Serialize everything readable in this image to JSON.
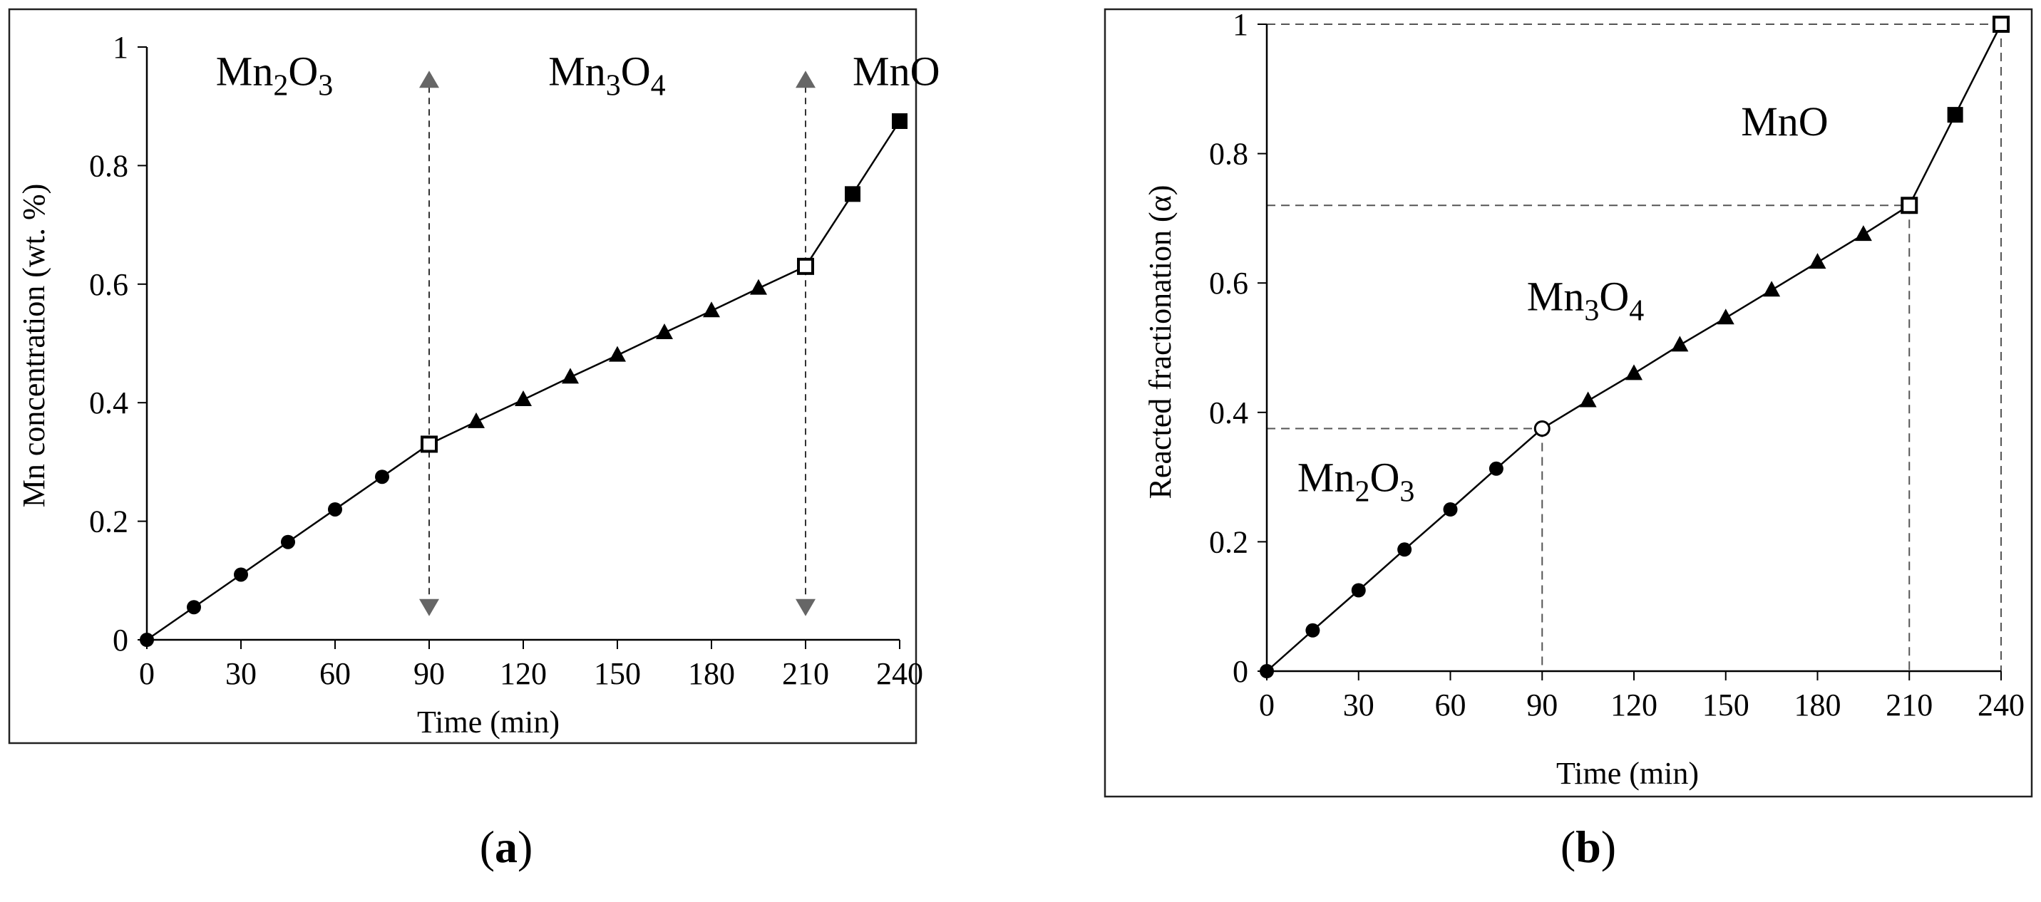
{
  "chart_data": [
    {
      "type": "line",
      "panel": "a",
      "panel_label": {
        "open": "(",
        "letter": "a",
        "close": ")"
      },
      "xlabel": "Time (min)",
      "ylabel": "Mn concentration (wt. %)",
      "xlim": [
        0,
        240
      ],
      "ylim": [
        0,
        1
      ],
      "xticks": [
        0,
        30,
        60,
        90,
        120,
        150,
        180,
        210,
        240
      ],
      "xtick_labels": [
        "0",
        "30",
        "60",
        "90",
        "120",
        "150",
        "180",
        "210",
        "240"
      ],
      "yticks": [
        0,
        0.2,
        0.4,
        0.6,
        0.8,
        1
      ],
      "ytick_labels": [
        "0",
        "0.2",
        "0.4",
        "0.6",
        "0.8",
        "1"
      ],
      "grid": false,
      "series": [
        {
          "name": "Mn concentration",
          "x": [
            0,
            15,
            30,
            45,
            60,
            75,
            90,
            105,
            120,
            135,
            150,
            165,
            180,
            195,
            210,
            225,
            240
          ],
          "y": [
            0,
            0.055,
            0.11,
            0.165,
            0.22,
            0.275,
            0.33,
            0.368,
            0.405,
            0.443,
            0.48,
            0.518,
            0.555,
            0.593,
            0.63,
            0.752,
            0.875
          ],
          "markers": [
            "circle",
            "circle",
            "circle",
            "circle",
            "circle",
            "circle",
            "open-square",
            "triangle",
            "triangle",
            "triangle",
            "triangle",
            "triangle",
            "triangle",
            "triangle",
            "open-square",
            "square",
            "square"
          ]
        }
      ],
      "annotations": [
        {
          "kind": "double-arrow",
          "x": 90,
          "y_from": 0.04,
          "y_to": 0.96
        },
        {
          "kind": "double-arrow",
          "x": 210,
          "y_from": 0.04,
          "y_to": 0.96
        },
        {
          "kind": "phase",
          "base": "Mn",
          "sub1": "2",
          "mid": "O",
          "sub2": "3",
          "x": 22,
          "y": 0.96
        },
        {
          "kind": "phase",
          "base": "Mn",
          "sub1": "3",
          "mid": "O",
          "sub2": "4",
          "x": 128,
          "y": 0.96
        },
        {
          "kind": "phase",
          "base": "MnO",
          "sub1": "",
          "mid": "",
          "sub2": "",
          "x": 225,
          "y": 0.96
        }
      ]
    },
    {
      "type": "line",
      "panel": "b",
      "panel_label": {
        "open": "(",
        "letter": "b",
        "close": ")"
      },
      "xlabel": "Time (min)",
      "ylabel": "Reacted fractionation (α)",
      "xlim": [
        0,
        240
      ],
      "ylim": [
        0,
        1
      ],
      "xticks": [
        0,
        30,
        60,
        90,
        120,
        150,
        180,
        210,
        240
      ],
      "xtick_labels": [
        "0",
        "30",
        "60",
        "90",
        "120",
        "150",
        "180",
        "210",
        "240"
      ],
      "yticks": [
        0,
        0.2,
        0.4,
        0.6,
        0.8,
        1
      ],
      "ytick_labels": [
        "0",
        "0.2",
        "0.4",
        "0.6",
        "0.8",
        "1"
      ],
      "grid": false,
      "series": [
        {
          "name": "Reacted fractionation",
          "x": [
            0,
            15,
            30,
            45,
            60,
            75,
            90,
            105,
            120,
            135,
            150,
            165,
            180,
            195,
            210,
            225,
            240
          ],
          "y": [
            0,
            0.063,
            0.125,
            0.188,
            0.25,
            0.313,
            0.375,
            0.418,
            0.46,
            0.504,
            0.546,
            0.589,
            0.632,
            0.675,
            0.72,
            0.86,
            1.0
          ],
          "markers": [
            "circle",
            "circle",
            "circle",
            "circle",
            "circle",
            "circle",
            "open-circle",
            "triangle",
            "triangle",
            "triangle",
            "triangle",
            "triangle",
            "triangle",
            "triangle",
            "open-square",
            "square",
            "open-square"
          ]
        }
      ],
      "annotations": [
        {
          "kind": "reference-lines",
          "x": 90,
          "y": 0.375
        },
        {
          "kind": "reference-lines",
          "x": 210,
          "y": 0.72
        },
        {
          "kind": "reference-lines",
          "x": 240,
          "y": 1.0
        },
        {
          "kind": "phase",
          "base": "Mn",
          "sub1": "2",
          "mid": "O",
          "sub2": "3",
          "x": 10,
          "y": 0.3
        },
        {
          "kind": "phase",
          "base": "Mn",
          "sub1": "3",
          "mid": "O",
          "sub2": "4",
          "x": 85,
          "y": 0.58
        },
        {
          "kind": "phase",
          "base": "MnO",
          "sub1": "",
          "mid": "",
          "sub2": "",
          "x": 155,
          "y": 0.85
        }
      ]
    }
  ]
}
